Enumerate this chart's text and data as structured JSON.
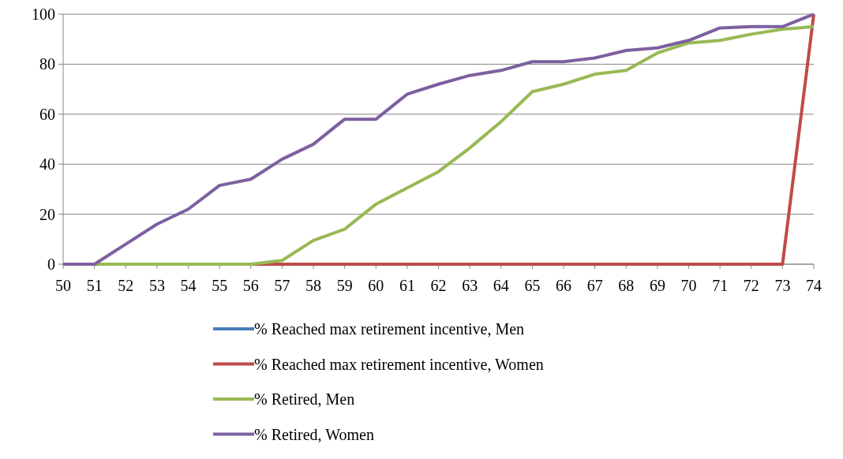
{
  "chart_data": {
    "type": "line",
    "x": [
      50,
      51,
      52,
      53,
      54,
      55,
      56,
      57,
      58,
      59,
      60,
      61,
      62,
      63,
      64,
      65,
      66,
      67,
      68,
      69,
      70,
      71,
      72,
      73,
      74
    ],
    "xlim": [
      50,
      74
    ],
    "xticks": [
      50,
      51,
      52,
      53,
      54,
      55,
      56,
      57,
      58,
      59,
      60,
      61,
      62,
      63,
      64,
      65,
      66,
      67,
      68,
      69,
      70,
      71,
      72,
      73,
      74
    ],
    "ylim": [
      0,
      100
    ],
    "yticks": [
      0,
      20,
      40,
      60,
      80,
      100
    ],
    "grid": "y",
    "legend": "bottom",
    "marker": "none",
    "line_style": "solid",
    "series": [
      {
        "name": "% Reached max retirement incentive, Men",
        "color": "#4a7ebb",
        "values": [
          null,
          null,
          null,
          null,
          null,
          null,
          null,
          null,
          null,
          null,
          null,
          null,
          null,
          null,
          null,
          null,
          null,
          null,
          null,
          null,
          null,
          null,
          null,
          null,
          null
        ]
      },
      {
        "name": "% Reached max retirement incentive, Women",
        "color": "#be4b48",
        "values": [
          null,
          null,
          null,
          null,
          null,
          0,
          0,
          0,
          0,
          0,
          0,
          0,
          0,
          0,
          0,
          0,
          0,
          0,
          0,
          0,
          0,
          0,
          0,
          0,
          100
        ]
      },
      {
        "name": "% Retired, Men",
        "color": "#98b954",
        "values": [
          0,
          0,
          0,
          0,
          0,
          0,
          0,
          1.5,
          9.5,
          14,
          24,
          30.5,
          37,
          46.5,
          57,
          69,
          72,
          76,
          77.5,
          84.5,
          88.5,
          89.5,
          92,
          94,
          95
        ]
      },
      {
        "name": "% Retired, Women",
        "color": "#7d60a0",
        "values": [
          0,
          0,
          8,
          16,
          22,
          31.5,
          34,
          42,
          48,
          58,
          58,
          68,
          72,
          75.5,
          77.5,
          81,
          81,
          82.5,
          85.5,
          86.5,
          89.5,
          94.5,
          95,
          95,
          100
        ]
      }
    ]
  }
}
